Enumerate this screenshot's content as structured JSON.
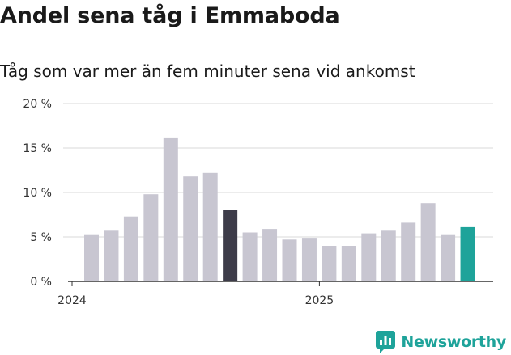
{
  "header": {
    "title": "Andel sena tåg i Emmaboda",
    "subtitle": "Tåg som var mer än fem minuter sena vid ankomst"
  },
  "brand": {
    "name": "Newsworthy",
    "color": "#1ea39a",
    "icon": "newsworthy-logo-icon"
  },
  "chart_data": {
    "type": "bar",
    "title": "Andel sena tåg i Emmaboda",
    "subtitle": "Tåg som var mer än fem minuter sena vid ankomst",
    "ylim": [
      0,
      20
    ],
    "yticks": [
      0,
      5,
      10,
      15,
      20
    ],
    "ytick_labels": [
      "0 %",
      "5 %",
      "10 %",
      "15 %",
      "20 %"
    ],
    "grid": true,
    "x_year_labels": [
      "2024",
      "2025"
    ],
    "year_label_bar_index": [
      0,
      12
    ],
    "values": [
      5.3,
      5.7,
      7.3,
      9.8,
      16.1,
      11.8,
      12.2,
      8.0,
      5.5,
      5.9,
      4.7,
      4.9,
      4.0,
      4.0,
      5.4,
      5.7,
      6.6,
      8.8,
      5.3,
      6.1
    ],
    "highlight": [
      {
        "index": 7,
        "color": "#3d3c49"
      },
      {
        "index": 19,
        "color": "#1ea39a"
      }
    ],
    "colors": {
      "default": "#c8c6d1",
      "grid": "#d9d9d9",
      "axis": "#333333"
    }
  }
}
